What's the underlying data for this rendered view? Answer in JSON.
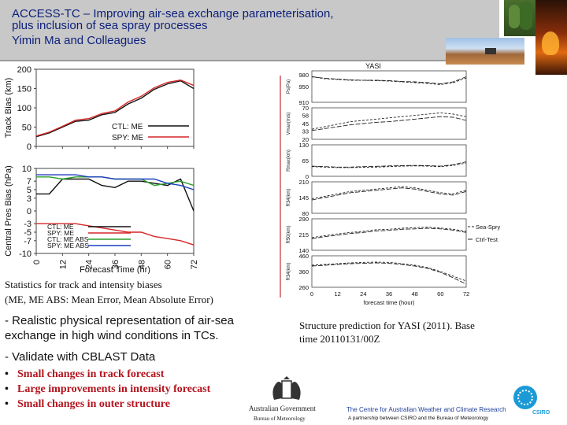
{
  "header": {
    "title_line1": "ACCESS-TC – Improving air-sea exchange parameterisation,",
    "title_line2": "plus inclusion of sea spray processes",
    "authors": "Yimin Ma and Colleagues"
  },
  "left_charts": {
    "track": {
      "ylabel": "Track Bias (km)",
      "yticks": [
        "200",
        "150",
        "100",
        "50",
        "0"
      ],
      "legend": [
        "CTL: ME",
        "SPY: ME"
      ]
    },
    "pressure": {
      "ylabel": "Central Pres Bias (hPa)",
      "yticks": [
        "10",
        "7",
        "5",
        "3",
        "0",
        "-3",
        "-5",
        "-7",
        "-10"
      ],
      "xticks": [
        "0",
        "12",
        "24",
        "36",
        "48",
        "60",
        "72"
      ],
      "xlabel": "Forecast Time (hr)",
      "legend": [
        "CTL: ME",
        "SPY: ME",
        "CTL: ME ABS",
        "SPY: ME ABS"
      ]
    },
    "track_chart_ticks": [
      "0",
      "12",
      "24",
      "36",
      "48",
      "60",
      "72"
    ]
  },
  "chart_data": [
    {
      "type": "line",
      "title": "",
      "xlabel": "",
      "ylabel": "Track Bias (km)",
      "x": [
        0,
        6,
        12,
        18,
        24,
        30,
        36,
        42,
        48,
        54,
        60,
        66,
        72
      ],
      "ylim": [
        0,
        200
      ],
      "series": [
        {
          "name": "CTL: ME",
          "color": "#111111",
          "values": [
            25,
            35,
            50,
            65,
            68,
            82,
            88,
            110,
            125,
            148,
            162,
            170,
            150
          ]
        },
        {
          "name": "SPY: ME",
          "color": "#d62728",
          "values": [
            27,
            37,
            52,
            68,
            72,
            85,
            92,
            115,
            130,
            152,
            166,
            172,
            158
          ]
        }
      ]
    },
    {
      "type": "line",
      "title": "",
      "xlabel": "Forecast Time (hr)",
      "ylabel": "Central Pres Bias (hPa)",
      "x": [
        0,
        6,
        12,
        18,
        24,
        30,
        36,
        42,
        48,
        54,
        60,
        66,
        72
      ],
      "ylim": [
        -10,
        10
      ],
      "series": [
        {
          "name": "CTL: ME",
          "color": "#111111",
          "values": [
            4,
            4,
            7.5,
            7.5,
            7.5,
            6,
            5.5,
            7,
            7,
            6.5,
            6,
            7.5,
            0
          ]
        },
        {
          "name": "SPY: ME",
          "color": "#d62728",
          "values": [
            -3,
            -3,
            -3,
            -3,
            -3.5,
            -4,
            -4.5,
            -5,
            -5,
            -6,
            -6.5,
            -7,
            -8
          ]
        },
        {
          "name": "CTL: ME ABS",
          "color": "#2ca02c",
          "values": [
            8,
            8,
            7.5,
            8,
            8,
            8,
            7.5,
            7.5,
            7.5,
            6,
            6.5,
            7,
            6
          ]
        },
        {
          "name": "SPY: ME ABS",
          "color": "#1f3fbf",
          "values": [
            8.5,
            8.5,
            8.5,
            8.5,
            8,
            8,
            7.5,
            7.5,
            7.5,
            7.5,
            6.5,
            6,
            5
          ]
        }
      ]
    },
    {
      "type": "line",
      "title": "YASI",
      "xlabel": "forecast time (hour)",
      "ylabel": "",
      "x": [
        0,
        6,
        12,
        18,
        24,
        30,
        36,
        42,
        48,
        54,
        60,
        66,
        72
      ],
      "panels": [
        {
          "ylabel": "Ps(Pa)",
          "yticks": [
            "980",
            "950",
            "910"
          ],
          "ylim": [
            910,
            990
          ],
          "series": [
            {
              "name": "Sea-Spry",
              "values": [
                975,
                970,
                968,
                966,
                966,
                965,
                964,
                962,
                960,
                958,
                955,
                960,
                972
              ]
            },
            {
              "name": "Ctrl-Test",
              "values": [
                975,
                971,
                969,
                967,
                966,
                966,
                965,
                963,
                962,
                960,
                957,
                962,
                975
              ]
            }
          ]
        },
        {
          "ylabel": "Vmax(m/s)",
          "yticks": [
            "70",
            "58",
            "45",
            "33",
            "20"
          ],
          "ylim": [
            20,
            70
          ],
          "series": [
            {
              "name": "Sea-Spry",
              "values": [
                36,
                40,
                44,
                48,
                50,
                52,
                54,
                56,
                58,
                60,
                62,
                60,
                56
              ]
            },
            {
              "name": "Ctrl-Test",
              "values": [
                34,
                37,
                40,
                43,
                45,
                47,
                48,
                50,
                52,
                54,
                56,
                55,
                50
              ]
            }
          ]
        },
        {
          "ylabel": "Rmax(km)",
          "yticks": [
            "130",
            "65",
            "0"
          ],
          "ylim": [
            0,
            130
          ],
          "series": [
            {
              "name": "Sea-Spry",
              "values": [
                40,
                38,
                36,
                36,
                37,
                38,
                40,
                42,
                43,
                42,
                40,
                45,
                55
              ]
            },
            {
              "name": "Ctrl-Test",
              "values": [
                42,
                40,
                38,
                38,
                40,
                41,
                43,
                44,
                45,
                44,
                42,
                48,
                60
              ]
            }
          ]
        },
        {
          "ylabel": "R34(km)",
          "yticks": [
            "210",
            "145",
            "80"
          ],
          "ylim": [
            80,
            210
          ],
          "series": [
            {
              "name": "Sea-Spry",
              "values": [
                140,
                150,
                160,
                170,
                175,
                180,
                185,
                190,
                185,
                175,
                165,
                160,
                175
              ]
            },
            {
              "name": "Ctrl-Test",
              "values": [
                135,
                145,
                155,
                165,
                170,
                175,
                180,
                185,
                180,
                170,
                160,
                155,
                170
              ]
            }
          ]
        },
        {
          "ylabel": "R50(km)",
          "yticks": [
            "290",
            "215",
            "140"
          ],
          "ylim": [
            140,
            290
          ],
          "series": [
            {
              "name": "Sea-Spry",
              "values": [
                200,
                210,
                218,
                225,
                230,
                238,
                240,
                245,
                248,
                250,
                246,
                240,
                230
              ]
            },
            {
              "name": "Ctrl-Test",
              "values": [
                195,
                205,
                212,
                220,
                225,
                232,
                235,
                240,
                242,
                245,
                242,
                236,
                225
              ]
            }
          ]
        },
        {
          "ylabel": "R34(km)",
          "yticks": [
            "460",
            "360",
            "260"
          ],
          "ylim": [
            260,
            460
          ],
          "series": [
            {
              "name": "Sea-Spry",
              "values": [
                400,
                405,
                410,
                415,
                418,
                420,
                418,
                410,
                400,
                385,
                360,
                330,
                300
              ]
            },
            {
              "name": "Ctrl-Test",
              "values": [
                395,
                400,
                405,
                410,
                412,
                415,
                412,
                405,
                395,
                380,
                355,
                320,
                280
              ]
            }
          ]
        }
      ],
      "xticks": [
        "0",
        "12",
        "24",
        "36",
        "48",
        "60",
        "72"
      ],
      "legend": [
        "Sea-Spry",
        "Ctrl-Test"
      ]
    }
  ],
  "right_chart": {
    "title": "YASI",
    "xlabel": "forecast time (hour)",
    "legend": [
      "Sea-Spry",
      "Ctrl-Test"
    ]
  },
  "captions": {
    "stats_line1": "Statistics for track and intensity biases",
    "stats_line2": "(ME, ME ABS: Mean Error, Mean Absolute Error)",
    "physical_line1": "- Realistic physical representation of air-sea",
    "physical_line2": "exchange in high wind conditions in TCs.",
    "structure_line1": "Structure prediction for YASI (2011). Base",
    "structure_line2": "time 20110131/00Z",
    "validate": "- Validate with CBLAST Data"
  },
  "bullets": [
    "Small changes in track forecast",
    "Large improvements in intensity forecast",
    "Small changes in outer structure"
  ],
  "footer": {
    "gov_line1": "Australian Government",
    "gov_line2": "Bureau of Meteorology",
    "centre": "The Centre for Australian Weather and Climate Research",
    "partnership": "A partnership between CSIRO and the Bureau of Meteorology",
    "csiro": "CSIRO"
  }
}
